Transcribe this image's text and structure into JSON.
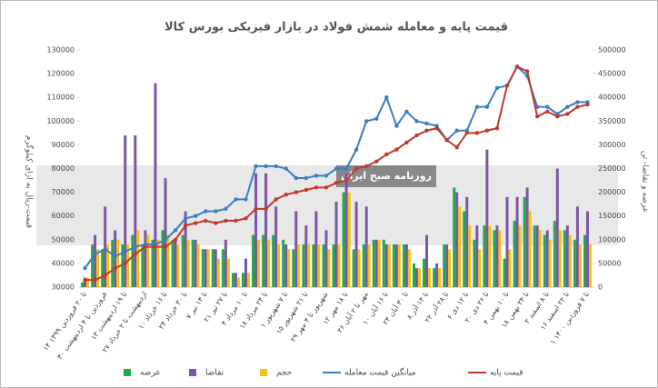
{
  "chart_data": {
    "type": "combo",
    "title": "قیمت پایه و معامله شمش فولاد در بازار فیزیکی بورس کالا",
    "ylabel": "قیمت-ریال به ازای کیلوگرم",
    "y2label": "عرضه و تقاضا- تن",
    "watermark": "روزنامه صبح ایران",
    "categories": [
      "۱۴ تا ۲۰ فروردین ۱۳۹۹",
      null,
      "۳۰ فروردین تا ۴ اردیبهشت",
      null,
      "۱۳ تا ۱۹ اردیبهشت",
      null,
      "۲۷ اردیبهشت تا ۲ خرداد",
      null,
      "۱۰ تا ۱۶ خرداد",
      null,
      "۲۴ تا ۳۰ خرداد",
      null,
      "۷ تا ۱۳ تیر",
      null,
      "۲۱ تا ۲۷ تیر",
      null,
      "۴ تا ۱۰ مرداد",
      null,
      "۱۸ تا ۲۴ مرداد",
      null,
      "۱ تا ۷ شهریور",
      null,
      "۱۵ تا ۲۱ شهریور",
      null,
      "۲۹ شهریور تا ۴ مهر",
      null,
      "۱۲ تا ۱۸ مهر",
      null,
      "۲۶ مهر تا ۲ آبان",
      null,
      "۱۰ تا ۱۶ آبان",
      null,
      "۲۴ تا ۳۰ آبان",
      null,
      "۸ تا ۱۴ آذر",
      null,
      "۲۲ تا ۲۸ آذر",
      null,
      "۶ تا ۱۲ دی",
      null,
      "۲۰ تا ۲۶ دی",
      null,
      "۴ تا ۱۰ بهمن",
      null,
      "۱۸ تا ۲۴ بهمن",
      null,
      "۲ تا ۸ اسفند",
      null,
      "۱۶ تا ۲۲ اسفند",
      null,
      "۱ تا ۷ فروردین ۱۴۰۰"
    ],
    "ylim": [
      30000,
      130000
    ],
    "yticks": [
      30000,
      40000,
      50000,
      60000,
      70000,
      80000,
      90000,
      100000,
      110000,
      120000,
      130000
    ],
    "y2lim": [
      0,
      500000
    ],
    "y2ticks": [
      0,
      50000,
      100000,
      150000,
      200000,
      250000,
      300000,
      350000,
      400000,
      450000,
      500000
    ],
    "legend": "bottom",
    "series": [
      {
        "name": "عرضه",
        "type": "bar",
        "axis": "y2",
        "color": "#22a84a",
        "values": [
          10000,
          90000,
          80000,
          100000,
          90000,
          110000,
          90000,
          100000,
          120000,
          100000,
          110000,
          100000,
          80000,
          80000,
          80000,
          30000,
          30000,
          110000,
          110000,
          110000,
          100000,
          80000,
          90000,
          90000,
          90000,
          90000,
          200000,
          80000,
          90000,
          100000,
          100000,
          90000,
          90000,
          50000,
          60000,
          40000,
          90000,
          210000,
          160000,
          100000,
          130000,
          120000,
          60000,
          140000,
          190000,
          130000,
          110000,
          140000,
          120000,
          100000,
          110000
        ]
      },
      {
        "name": "تقاضا",
        "type": "bar",
        "axis": "y2",
        "color": "#7b55a6",
        "values": [
          20000,
          110000,
          170000,
          120000,
          320000,
          320000,
          120000,
          430000,
          230000,
          100000,
          160000,
          100000,
          80000,
          80000,
          100000,
          30000,
          60000,
          240000,
          240000,
          170000,
          90000,
          160000,
          130000,
          160000,
          120000,
          180000,
          240000,
          180000,
          170000,
          100000,
          90000,
          90000,
          90000,
          40000,
          110000,
          50000,
          90000,
          200000,
          190000,
          130000,
          290000,
          130000,
          190000,
          190000,
          210000,
          130000,
          120000,
          250000,
          130000,
          170000,
          160000
        ]
      },
      {
        "name": "حجم",
        "type": "bar",
        "axis": "y2",
        "color": "#f4c20d",
        "values": [
          20000,
          80000,
          90000,
          100000,
          90000,
          120000,
          110000,
          100000,
          110000,
          90000,
          100000,
          90000,
          80000,
          60000,
          60000,
          20000,
          30000,
          100000,
          100000,
          90000,
          80000,
          90000,
          90000,
          90000,
          80000,
          90000,
          200000,
          80000,
          90000,
          100000,
          90000,
          90000,
          80000,
          40000,
          40000,
          40000,
          80000,
          170000,
          130000,
          80000,
          130000,
          120000,
          80000,
          130000,
          160000,
          120000,
          100000,
          120000,
          110000,
          90000,
          90000
        ]
      },
      {
        "name": "میانگین قیمت معامله",
        "type": "line",
        "axis": "y",
        "color": "#3b7dc4",
        "values": [
          38000,
          44000,
          46000,
          43000,
          45000,
          47000,
          48000,
          48000,
          50000,
          54000,
          59000,
          60000,
          62000,
          62000,
          63000,
          67000,
          67000,
          81000,
          81000,
          81000,
          80000,
          76000,
          76000,
          77000,
          77000,
          80000,
          80000,
          88000,
          100000,
          101000,
          110000,
          98000,
          104000,
          100000,
          99000,
          98000,
          92000,
          96000,
          96000,
          106000,
          106000,
          114000,
          115000,
          123000,
          119000,
          106000,
          106000,
          103000,
          106000,
          108000,
          108000
        ]
      },
      {
        "name": "قیمت پایه",
        "type": "line",
        "axis": "y",
        "color": "#c0392b",
        "values": [
          33000,
          33000,
          35000,
          38000,
          40000,
          44000,
          47000,
          47000,
          47000,
          50000,
          56000,
          57000,
          58000,
          57000,
          58000,
          58000,
          59000,
          63000,
          63000,
          67000,
          69000,
          70000,
          71000,
          72000,
          72000,
          74000,
          75000,
          80000,
          81000,
          83000,
          86000,
          88000,
          91000,
          94000,
          96000,
          97000,
          92000,
          89000,
          95000,
          95000,
          96000,
          97000,
          115000,
          123000,
          121000,
          102000,
          104000,
          102000,
          103000,
          106000,
          107000
        ]
      }
    ]
  }
}
